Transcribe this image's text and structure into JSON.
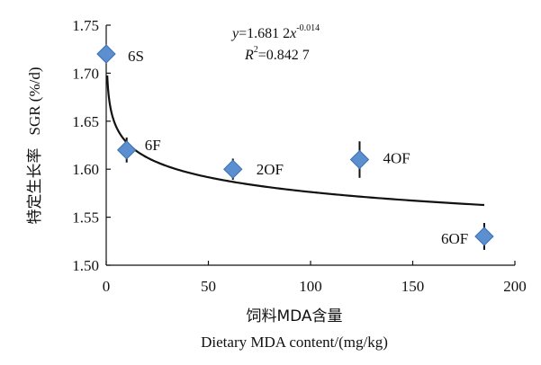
{
  "chart_data": {
    "type": "scatter",
    "ylabel_cn": "特定生长率",
    "ylabel_en": "SGR (%/d)",
    "xlabel_cn": "饲料MDA含量",
    "xlabel_en": "Dietary MDA content/(mg/kg)",
    "xlim": [
      0,
      200
    ],
    "ylim": [
      1.5,
      1.75
    ],
    "x_ticks": [
      0,
      50,
      100,
      150,
      200
    ],
    "x_tick_labels": [
      "0",
      "50",
      "100",
      "150",
      "200"
    ],
    "y_ticks": [
      1.5,
      1.55,
      1.6,
      1.65,
      1.7,
      1.75
    ],
    "y_tick_labels": [
      "1.50",
      "1.55",
      "1.60",
      "1.65",
      "1.70",
      "1.75"
    ],
    "points": [
      {
        "label": "6S",
        "x": 0,
        "y": 1.72,
        "err": 0.004
      },
      {
        "label": "6F",
        "x": 10,
        "y": 1.62,
        "err": 0.013
      },
      {
        "label": "2OF",
        "x": 62,
        "y": 1.6,
        "err": 0.011
      },
      {
        "label": "4OF",
        "x": 124,
        "y": 1.61,
        "err": 0.019
      },
      {
        "label": "6OF",
        "x": 185,
        "y": 1.53,
        "err": 0.014
      }
    ],
    "fit": {
      "type": "power",
      "a": 1.6812,
      "b": -0.014,
      "x_range": [
        0.5,
        185
      ]
    },
    "equation": {
      "prefix": "y=1.681 2",
      "var": "x",
      "exponent": "-0.014"
    },
    "r2": {
      "prefix": "R",
      "sup": "2",
      "value": "=0.842 7"
    },
    "marker_color": "#5b8fd0",
    "marker_edge": "#3a6fb0",
    "line_color": "#111111"
  }
}
